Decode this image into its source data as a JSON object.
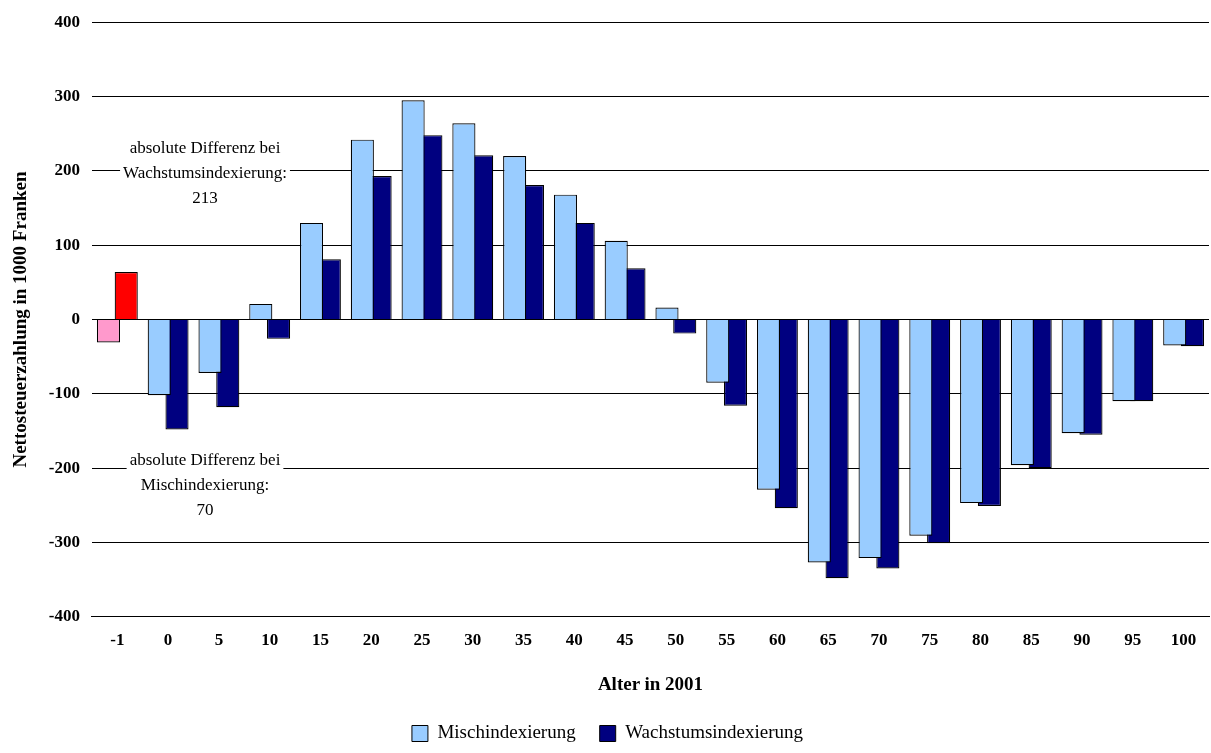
{
  "chart_data": {
    "type": "bar",
    "xlabel": "Alter in 2001",
    "ylabel": "Nettosteuerzahlung in 1000 Franken",
    "categories": [
      "-1",
      "0",
      "5",
      "10",
      "15",
      "20",
      "25",
      "30",
      "35",
      "40",
      "45",
      "50",
      "55",
      "60",
      "65",
      "70",
      "75",
      "80",
      "85",
      "90",
      "95",
      "100"
    ],
    "series": [
      {
        "name": "Mischindexierung",
        "color": "#99ccff",
        "colors": [
          "#ff99cc",
          "#99ccff",
          "#99ccff",
          "#99ccff",
          "#99ccff",
          "#99ccff",
          "#99ccff",
          "#99ccff",
          "#99ccff",
          "#99ccff",
          "#99ccff",
          "#99ccff",
          "#99ccff",
          "#99ccff",
          "#99ccff",
          "#99ccff",
          "#99ccff",
          "#99ccff",
          "#99ccff",
          "#99ccff",
          "#99ccff",
          "#99ccff"
        ],
        "values": [
          -31,
          -102,
          -72,
          21,
          130,
          242,
          295,
          264,
          220,
          168,
          106,
          16,
          -85,
          -229,
          -327,
          -321,
          -291,
          -247,
          -196,
          -153,
          -110,
          -35
        ]
      },
      {
        "name": "Wachstumsindexierung",
        "color": "#000080",
        "colors": [
          "#ff0000",
          "#000080",
          "#000080",
          "#000080",
          "#000080",
          "#000080",
          "#000080",
          "#000080",
          "#000080",
          "#000080",
          "#000080",
          "#000080",
          "#000080",
          "#000080",
          "#000080",
          "#000080",
          "#000080",
          "#000080",
          "#000080",
          "#000080",
          "#000080",
          "#000080"
        ],
        "values": [
          64,
          -148,
          -118,
          -26,
          81,
          193,
          248,
          221,
          181,
          130,
          69,
          -19,
          -116,
          -254,
          -348,
          -335,
          -301,
          -251,
          -200,
          -155,
          -110,
          -36
        ]
      }
    ],
    "ylim": [
      -400,
      400
    ],
    "yticks": [
      -400,
      -300,
      -200,
      -100,
      0,
      100,
      200,
      300,
      400
    ],
    "grid": "y",
    "legend": "bottom",
    "annotations": [
      "absolute Differenz bei\nWachstumsindexierung:\n213",
      "absolute Differenz bei\nMischindexierung:\n70"
    ]
  }
}
